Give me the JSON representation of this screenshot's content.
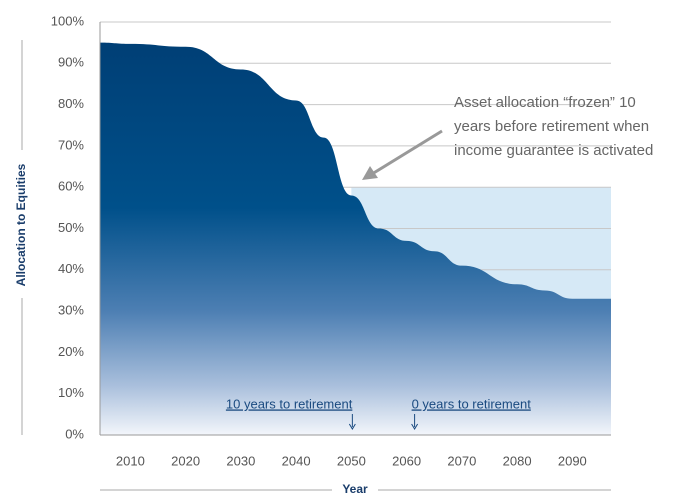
{
  "chart_data": {
    "type": "area",
    "x": [
      2004.5,
      2010,
      2020,
      2030,
      2040,
      2045,
      2050,
      2055,
      2060,
      2065,
      2070,
      2080,
      2085,
      2090,
      2097
    ],
    "series": [
      {
        "color": "#004a80",
        "values": [
          95,
          94.7,
          94,
          88.5,
          81,
          72,
          58,
          50,
          47,
          44.5,
          41,
          36.5,
          35,
          33,
          33
        ]
      }
    ],
    "frozen": {
      "x": [
        2050,
        2097
      ],
      "values": [
        60,
        60
      ],
      "color": "#d6e9f6"
    },
    "xlim": [
      2004.5,
      2097
    ],
    "ylim": [
      0,
      100
    ],
    "xticks": [
      2010,
      2020,
      2030,
      2040,
      2050,
      2060,
      2070,
      2080,
      2090
    ],
    "yticks": [
      {
        "value": 0,
        "label": "0%"
      },
      {
        "value": 10,
        "label": "10%"
      },
      {
        "value": 20,
        "label": "20%"
      },
      {
        "value": 30,
        "label": "30%"
      },
      {
        "value": 40,
        "label": "40%"
      },
      {
        "value": 50,
        "label": "50%"
      },
      {
        "value": 60,
        "label": "60%"
      },
      {
        "value": 70,
        "label": "70%"
      },
      {
        "value": 80,
        "label": "80%"
      },
      {
        "value": 90,
        "label": "90%"
      },
      {
        "value": 100,
        "label": "100%"
      }
    ],
    "grid": true,
    "xlabel": "Year",
    "ylabel": "Allocation to Equities",
    "annotation": [
      "Asset allocation “frozen” 10",
      "years before retirement when",
      "income guarantee is activated"
    ],
    "markers": [
      {
        "label": "10 years to retirement",
        "x": 2050
      },
      {
        "label": "0 years to retirement",
        "x": 2060
      }
    ]
  }
}
